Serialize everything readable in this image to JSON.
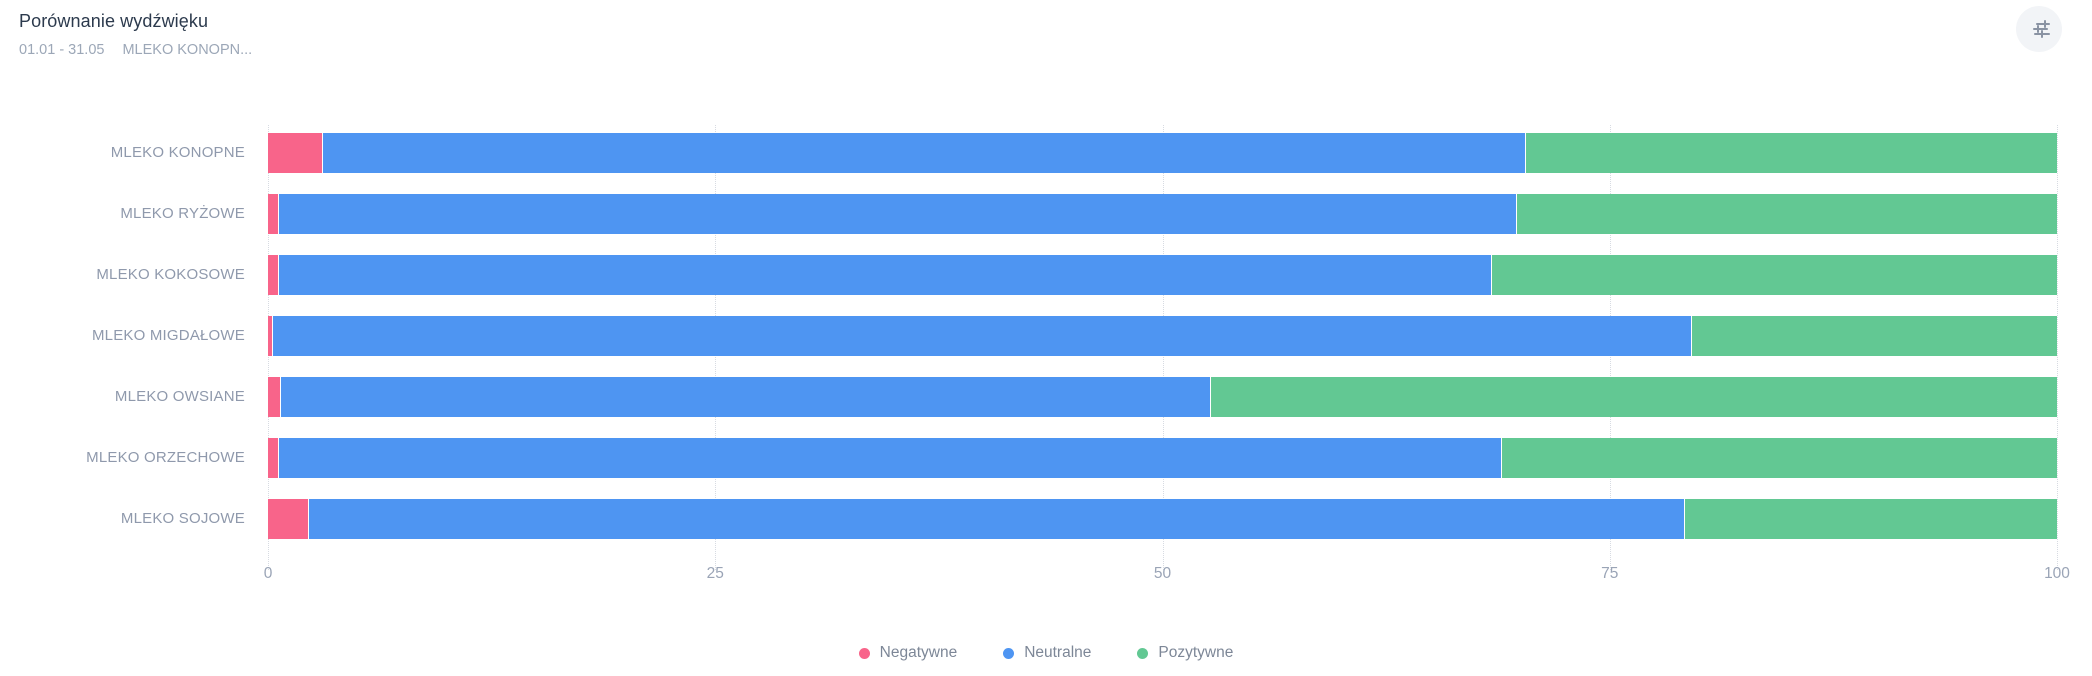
{
  "header": {
    "title": "Porównanie wydźwięku",
    "date_range": "01.01 - 31.05",
    "filter_label": "MLEKO KONOPN...",
    "settings_icon": "sliders-icon"
  },
  "colors": {
    "negative": "#F8648A",
    "neutral": "#4E95F2",
    "positive": "#62C893",
    "grid": "#D7DBE2",
    "axis_text": "#9AA4B6",
    "category_text": "#8F99AC",
    "title_text": "#2C3A4D",
    "subtitle_text": "#9CA7B7",
    "icon_background": "#F2F4F7",
    "icon_stroke": "#8A93A3"
  },
  "chart_data": {
    "type": "bar",
    "orientation": "horizontal",
    "stacked": true,
    "title": "Porównanie wydźwięku",
    "categories": [
      "MLEKO KONOPNE",
      "MLEKO RYŻOWE",
      "MLEKO KOKOSOWE",
      "MLEKO MIGDAŁOWE",
      "MLEKO OWSIANE",
      "MLEKO ORZECHOWE",
      "MLEKO SOJOWE"
    ],
    "series": [
      {
        "name": "Negatywne",
        "color": "#F8648A",
        "values": [
          3.1,
          0.6,
          0.6,
          0.3,
          0.7,
          0.6,
          2.3
        ]
      },
      {
        "name": "Neutralne",
        "color": "#4E95F2",
        "values": [
          67.2,
          69.2,
          67.8,
          79.3,
          52.0,
          68.4,
          76.9
        ]
      },
      {
        "name": "Pozytywne",
        "color": "#62C893",
        "values": [
          29.7,
          30.2,
          31.6,
          20.4,
          47.3,
          31.0,
          20.8
        ]
      }
    ],
    "x_ticks": [
      0,
      25,
      50,
      75,
      100
    ],
    "xlim": [
      0,
      100
    ],
    "grid": "dotted-vertical",
    "legend_position": "bottom"
  }
}
